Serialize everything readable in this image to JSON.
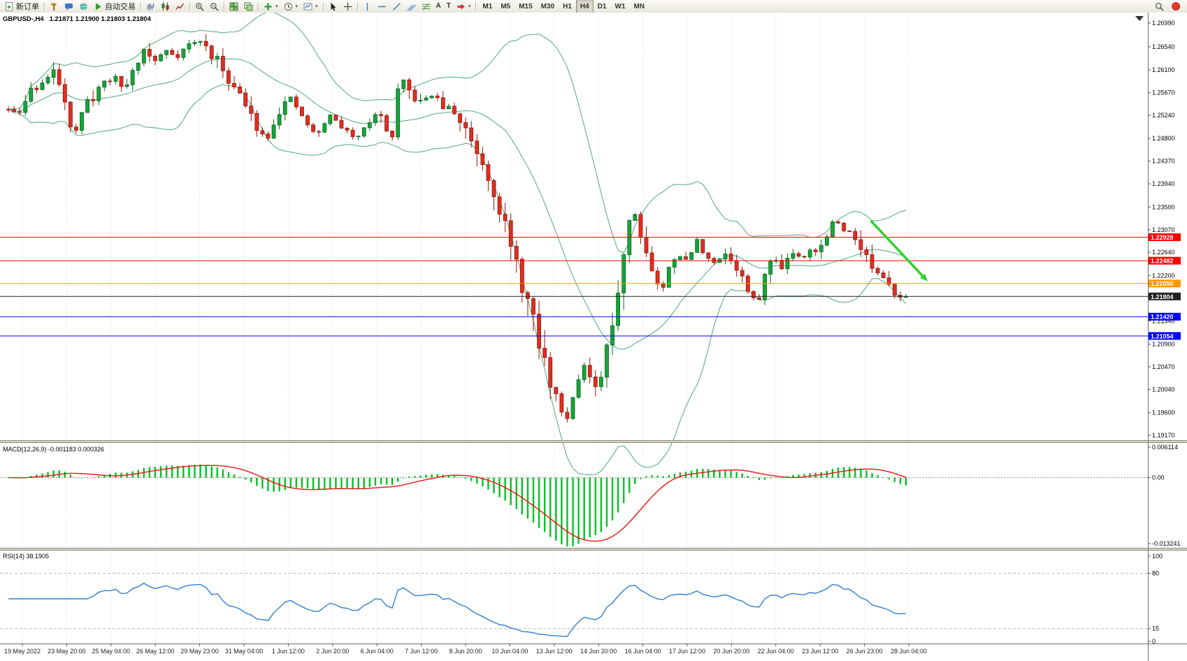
{
  "colors": {
    "background": "#ffffff",
    "grid": "#cfcfcf",
    "candle_up": "#16a538",
    "candle_up_border": "#0a6423",
    "candle_down": "#e02f21",
    "candle_down_border": "#8f150c",
    "bollinger": "#4da87c",
    "macd_histogram": "#00c322",
    "macd_signal": "#ee1111",
    "rsi_line": "#2e7fd0",
    "arrow_green": "#2bd32b",
    "axis_text": "#000000",
    "tag_text": "#ffffff"
  },
  "toolbar": {
    "groups": [
      {
        "name": "trade",
        "items": [
          {
            "name": "new-order-button",
            "icon": "new-order-icon",
            "label": "新订单"
          }
        ]
      },
      {
        "name": "apps",
        "items": [
          {
            "name": "metaeditor-button",
            "icon": "hammer-icon"
          },
          {
            "name": "chat-button",
            "icon": "chat-icon"
          },
          {
            "name": "community-button",
            "icon": "globe-icon"
          },
          {
            "name": "autotrading-button",
            "icon": "play-icon",
            "label": "自动交易"
          }
        ]
      },
      {
        "name": "chart-types",
        "items": [
          {
            "name": "bar-chart-button",
            "icon": "bar-chart-icon"
          },
          {
            "name": "candlestick-button",
            "icon": "candlestick-icon"
          },
          {
            "name": "line-chart-button",
            "icon": "line-chart-icon"
          }
        ]
      },
      {
        "name": "zoom",
        "items": [
          {
            "name": "zoom-in-button",
            "icon": "zoom-in-icon"
          },
          {
            "name": "zoom-out-button",
            "icon": "zoom-out-icon"
          }
        ]
      },
      {
        "name": "windows",
        "items": [
          {
            "name": "tile-windows-button",
            "icon": "tile-windows-icon"
          },
          {
            "name": "cascade-windows-button",
            "icon": "cascade-windows-icon"
          }
        ]
      },
      {
        "name": "insert",
        "items": [
          {
            "name": "indicators-button",
            "icon": "indicators-icon",
            "caret": true
          },
          {
            "name": "periods-button",
            "icon": "periods-icon",
            "caret": true
          },
          {
            "name": "templates-button",
            "icon": "templates-icon",
            "caret": true
          }
        ]
      },
      {
        "name": "pointer",
        "items": [
          {
            "name": "cursor-button",
            "icon": "cursor-icon"
          },
          {
            "name": "crosshair-button",
            "icon": "crosshair-icon"
          }
        ]
      },
      {
        "name": "objects",
        "items": [
          {
            "name": "vertical-line-button",
            "icon": "vline-icon"
          },
          {
            "name": "horizontal-line-button",
            "icon": "hline-icon"
          },
          {
            "name": "trendline-button",
            "icon": "trendline-icon"
          },
          {
            "name": "channel-button",
            "icon": "channel-icon"
          },
          {
            "name": "fibonacci-button",
            "icon": "fibonacci-icon"
          },
          {
            "name": "text-button",
            "glyph": "A"
          },
          {
            "name": "label-button",
            "glyph": "T"
          },
          {
            "name": "shapes-button",
            "icon": "shapes-icon",
            "caret": true
          }
        ]
      },
      {
        "name": "timeframes",
        "items": [
          {
            "name": "tf-m1-button",
            "label": "M1",
            "timeframe": true
          },
          {
            "name": "tf-m5-button",
            "label": "M5",
            "timeframe": true
          },
          {
            "name": "tf-m15-button",
            "label": "M15",
            "timeframe": true
          },
          {
            "name": "tf-m30-button",
            "label": "M30",
            "timeframe": true
          },
          {
            "name": "tf-h1-button",
            "label": "H1",
            "timeframe": true
          },
          {
            "name": "tf-h4-button",
            "label": "H4",
            "timeframe": true,
            "active": true
          },
          {
            "name": "tf-d1-button",
            "label": "D1",
            "timeframe": true
          },
          {
            "name": "tf-w1-button",
            "label": "W1",
            "timeframe": true
          },
          {
            "name": "tf-mn-button",
            "label": "MN",
            "timeframe": true
          }
        ]
      }
    ],
    "right": [
      {
        "name": "search-button",
        "icon": "search-icon"
      },
      {
        "name": "alert-badge",
        "badge": true
      }
    ]
  },
  "chart": {
    "symbol_line": "GBPUSD-,H4",
    "ohlc_line": "1.21871 1.21900 1.21803 1.21804",
    "current_price": "1.21804"
  },
  "render_hints": {
    "seed": 11,
    "grid": "vertical-dotted"
  },
  "chart_data": [
    {
      "type": "candlestick",
      "symbol": "GBPUSD-",
      "timeframe": "H4",
      "title": "GBPUSD-,H4",
      "ohlc": {
        "open": "1.21871",
        "high": "1.21900",
        "low": "1.21803",
        "close": "1.21804"
      },
      "last_price": 1.21804,
      "candle_count": 160,
      "y_axis_ticks": [
        "1.26990",
        "1.26540",
        "1.26100",
        "1.25670",
        "1.25240",
        "1.24800",
        "1.24370",
        "1.23940",
        "1.23500",
        "1.23070",
        "1.22640",
        "1.22200",
        "1.21340",
        "1.20900",
        "1.20470",
        "1.20040",
        "1.19600",
        "1.19170"
      ],
      "x_axis_labels": [
        "19 May 2022",
        "23 May 20:00",
        "25 May 04:00",
        "26 May 12:00",
        "29 May 23:00",
        "31 May 04:00",
        "1 Jun 12:00",
        "2 Jun 20:00",
        "6 Jun 04:00",
        "7 Jun 12:00",
        "8 Jun 20:00",
        "10 Jun 04:00",
        "13 Jun 12:00",
        "14 Jun 20:00",
        "16 Jun 04:00",
        "17 Jun 12:00",
        "20 Jun 20:00",
        "22 Jun 04:00",
        "23 Jun 12:00",
        "26 Jun 23:00",
        "28 Jun 04:00"
      ],
      "price_path_anchors": [
        [
          0.0,
          1.2535
        ],
        [
          0.01,
          1.252
        ],
        [
          0.025,
          1.2572
        ],
        [
          0.04,
          1.259
        ],
        [
          0.052,
          1.2605
        ],
        [
          0.062,
          1.2565
        ],
        [
          0.072,
          1.2482
        ],
        [
          0.085,
          1.254
        ],
        [
          0.1,
          1.2576
        ],
        [
          0.115,
          1.2597
        ],
        [
          0.13,
          1.2575
        ],
        [
          0.14,
          1.2615
        ],
        [
          0.152,
          1.265
        ],
        [
          0.163,
          1.2625
        ],
        [
          0.175,
          1.2648
        ],
        [
          0.188,
          1.2638
        ],
        [
          0.2,
          1.2658
        ],
        [
          0.215,
          1.2665
        ],
        [
          0.228,
          1.2635
        ],
        [
          0.242,
          1.2605
        ],
        [
          0.258,
          1.256
        ],
        [
          0.272,
          1.2515
        ],
        [
          0.287,
          1.2478
        ],
        [
          0.3,
          1.2528
        ],
        [
          0.313,
          1.2558
        ],
        [
          0.328,
          1.252
        ],
        [
          0.343,
          1.2482
        ],
        [
          0.357,
          1.2525
        ],
        [
          0.372,
          1.2502
        ],
        [
          0.385,
          1.2478
        ],
        [
          0.398,
          1.2508
        ],
        [
          0.412,
          1.2528
        ],
        [
          0.428,
          1.248
        ],
        [
          0.436,
          1.2598
        ],
        [
          0.448,
          1.2562
        ],
        [
          0.46,
          1.2545
        ],
        [
          0.47,
          1.2568
        ],
        [
          0.483,
          1.2542
        ],
        [
          0.497,
          1.2528
        ],
        [
          0.512,
          1.2492
        ],
        [
          0.527,
          1.2442
        ],
        [
          0.54,
          1.2395
        ],
        [
          0.552,
          1.2322
        ],
        [
          0.563,
          1.2245
        ],
        [
          0.572,
          1.2208
        ],
        [
          0.582,
          1.2148
        ],
        [
          0.592,
          1.2082
        ],
        [
          0.603,
          1.2022
        ],
        [
          0.613,
          1.1978
        ],
        [
          0.622,
          1.1945
        ],
        [
          0.631,
          1.2008
        ],
        [
          0.64,
          1.2052
        ],
        [
          0.649,
          1.2018
        ],
        [
          0.655,
          1.1992
        ],
        [
          0.663,
          1.2042
        ],
        [
          0.671,
          1.2105
        ],
        [
          0.679,
          1.2198
        ],
        [
          0.688,
          1.2295
        ],
        [
          0.695,
          1.2355
        ],
        [
          0.703,
          1.2308
        ],
        [
          0.712,
          1.2258
        ],
        [
          0.721,
          1.2212
        ],
        [
          0.729,
          1.2192
        ],
        [
          0.738,
          1.2248
        ],
        [
          0.747,
          1.2268
        ],
        [
          0.756,
          1.2242
        ],
        [
          0.766,
          1.2288
        ],
        [
          0.776,
          1.2262
        ],
        [
          0.786,
          1.2238
        ],
        [
          0.796,
          1.2268
        ],
        [
          0.806,
          1.2248
        ],
        [
          0.816,
          1.2222
        ],
        [
          0.826,
          1.2182
        ],
        [
          0.834,
          1.2165
        ],
        [
          0.843,
          1.2222
        ],
        [
          0.853,
          1.2255
        ],
        [
          0.863,
          1.2238
        ],
        [
          0.873,
          1.2268
        ],
        [
          0.883,
          1.2252
        ],
        [
          0.893,
          1.2275
        ],
        [
          0.902,
          1.2262
        ],
        [
          0.912,
          1.2298
        ],
        [
          0.921,
          1.2328
        ],
        [
          0.93,
          1.2302
        ],
        [
          0.94,
          1.2312
        ],
        [
          0.95,
          1.2272
        ],
        [
          0.96,
          1.2242
        ],
        [
          0.97,
          1.2215
        ],
        [
          0.98,
          1.2198
        ],
        [
          0.99,
          1.2188
        ],
        [
          1.0,
          1.21804
        ]
      ],
      "overlays": {
        "bollinger_bands": {
          "period": 20,
          "deviation": 2,
          "color": "#4da87c"
        }
      },
      "horizontal_lines": [
        {
          "price": 1.22928,
          "label": "1.22928",
          "color": "#ff0000"
        },
        {
          "price": 1.22482,
          "label": "1.22482",
          "color": "#ff0000"
        },
        {
          "price": 1.2205,
          "label": "1.22050",
          "color": "#ff9900"
        },
        {
          "price": 1.21804,
          "label": "1.21804",
          "color": "#222222",
          "role": "current-price"
        },
        {
          "price": 1.2142,
          "label": "1.21420",
          "color": "#0000ff"
        },
        {
          "price": 1.21054,
          "label": "1.21054",
          "color": "#0000ff"
        }
      ],
      "annotations": [
        {
          "type": "arrow",
          "from": [
            0.958,
            1.2324
          ],
          "to": [
            1.021,
            1.2209
          ],
          "color": "#2bd32b"
        }
      ]
    },
    {
      "type": "bar",
      "name": "MACD",
      "label": "MACD(12,26,9) -0.001183 0.000326",
      "params": {
        "fast": 12,
        "slow": 26,
        "signal": 9
      },
      "current_macd": -0.001183,
      "current_signal": 0.000326,
      "y_axis_ticks": [
        "0.006114",
        "0.00",
        "-0.013241"
      ],
      "ylim": [
        -0.013241,
        0.006114
      ],
      "histogram_color": "#00c322",
      "signal_color": "#ee1111",
      "derived_from": "candlestick closes"
    },
    {
      "type": "line",
      "name": "RSI",
      "label": "RSI(14) 38.1905",
      "period": 14,
      "current_value": 38.1905,
      "levels": [
        80,
        15
      ],
      "y_axis_ticks": [
        "100",
        "80",
        "15",
        "0"
      ],
      "ylim": [
        0,
        100
      ],
      "line_color": "#2e7fd0",
      "derived_from": "candlestick closes"
    }
  ]
}
